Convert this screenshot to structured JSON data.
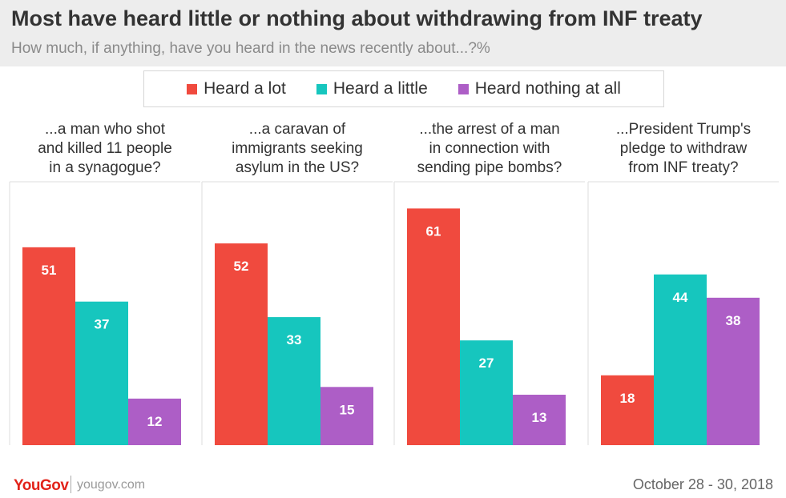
{
  "header": {
    "title": "Most have heard little or nothing about withdrawing from INF treaty",
    "subtitle": "How much, if anything, have you heard in the news recently about...?%"
  },
  "legend": {
    "items": [
      {
        "label": "Heard a lot",
        "color": "#f04a3e"
      },
      {
        "label": "Heard a little",
        "color": "#16c6be"
      },
      {
        "label": "Heard nothing at all",
        "color": "#ad5ec6"
      }
    ]
  },
  "chart_data": {
    "type": "bar",
    "title": "Most have heard little or nothing about withdrawing from INF treaty",
    "subtitle": "How much, if anything, have you heard in the news recently about...?%",
    "legend_placement": "top-center",
    "grid": false,
    "ylim": [
      0,
      65
    ],
    "series_names": [
      "Heard a lot",
      "Heard a little",
      "Heard nothing at all"
    ],
    "series_colors": [
      "#f04a3e",
      "#16c6be",
      "#ad5ec6"
    ],
    "panels": [
      {
        "title_lines": [
          "...a man who shot",
          "and killed 11 people",
          "in a synagogue?"
        ],
        "values": [
          51,
          37,
          12
        ]
      },
      {
        "title_lines": [
          "...a caravan of",
          "immigrants seeking",
          "asylum in the US?"
        ],
        "values": [
          52,
          33,
          15
        ]
      },
      {
        "title_lines": [
          "...the arrest of a man",
          "in connection with",
          "sending pipe bombs?"
        ],
        "values": [
          61,
          27,
          13
        ]
      },
      {
        "title_lines": [
          "...President Trump's",
          "pledge to withdraw",
          "from INF treaty?"
        ],
        "values": [
          18,
          44,
          38
        ]
      }
    ]
  },
  "footer": {
    "logo": "YouGov",
    "site": "yougov.com",
    "date": "October 28 - 30, 2018"
  }
}
